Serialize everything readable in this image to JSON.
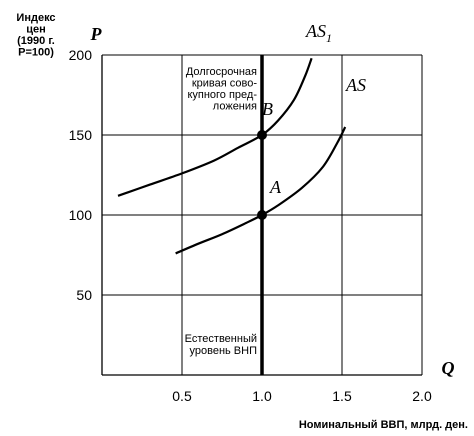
{
  "chart_data": {
    "type": "line",
    "xlabel": "Номинальный ВВП, млрд. ден.",
    "xaxis_letter": "Q",
    "ylabel": [
      "Индекс",
      "цен",
      "(1990 г.",
      "P=100)"
    ],
    "yaxis_letter": "P",
    "xlim": [
      0,
      2.0
    ],
    "ylim": [
      0,
      200
    ],
    "x_ticks": [
      0.5,
      1.0,
      1.5,
      2.0
    ],
    "x_tick_labels": [
      "0.5",
      "1.0",
      "1.5",
      "2.0"
    ],
    "y_ticks": [
      50,
      100,
      150,
      200
    ],
    "y_tick_labels": [
      "50",
      "100",
      "150",
      "200"
    ],
    "grid": true,
    "series": [
      {
        "name": "AS",
        "label_main": "AS",
        "label_sub": "",
        "color": "#000000",
        "x": [
          0.46,
          0.6,
          0.75,
          0.9,
          1.0,
          1.1,
          1.25,
          1.38,
          1.47,
          1.52
        ],
        "y": [
          76,
          82,
          88,
          95,
          100,
          106,
          117,
          130,
          145,
          155
        ]
      },
      {
        "name": "AS1",
        "label_main": "AS",
        "label_sub": "1",
        "color": "#000000",
        "x": [
          0.1,
          0.3,
          0.5,
          0.7,
          0.85,
          1.0,
          1.1,
          1.2,
          1.27,
          1.31
        ],
        "y": [
          112,
          119,
          126,
          134,
          142,
          150,
          159,
          172,
          187,
          198
        ]
      }
    ],
    "vertical_line": {
      "x": 1.0,
      "label_top": [
        "Долгосрочная",
        "кривая сово-",
        "купного пред-",
        "ложения"
      ],
      "label_bottom": [
        "Естественный",
        "уровень ВНП"
      ]
    },
    "points": [
      {
        "label": "A",
        "x": 1.0,
        "y": 100
      },
      {
        "label": "B",
        "x": 1.0,
        "y": 150
      }
    ]
  }
}
